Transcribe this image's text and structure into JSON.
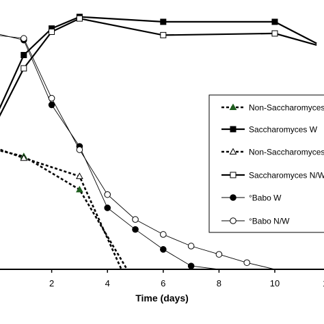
{
  "chart_data": {
    "type": "line",
    "title": "",
    "xlabel": "Time (days)",
    "ylabel": "",
    "xlim": [
      0,
      11.5
    ],
    "x_ticks": [
      2,
      4,
      6,
      8,
      10
    ],
    "x_tick_labels": [
      "2",
      "4",
      "6",
      "8",
      "10"
    ],
    "grid": false,
    "legend_position": "right",
    "series": [
      {
        "name": "Non-Saccharomyces W",
        "line": "dashed",
        "marker": "triangle-filled",
        "color": "#000000",
        "x": [
          0,
          1,
          3,
          4.7
        ],
        "y": [
          0.72,
          0.68,
          0.48,
          0.0
        ]
      },
      {
        "name": "Saccharomyces W",
        "line": "solid",
        "marker": "square-filled",
        "color": "#000000",
        "x": [
          0,
          1,
          2,
          3,
          6,
          10,
          11.5
        ],
        "y": [
          0.92,
          1.29,
          1.45,
          1.52,
          1.49,
          1.49,
          1.36
        ]
      },
      {
        "name": "Non-Saccharomyces N/W",
        "line": "dashed",
        "marker": "triangle-open",
        "color": "#000000",
        "x": [
          0,
          1,
          3,
          4.5
        ],
        "y": [
          0.73,
          0.67,
          0.56,
          0.0
        ]
      },
      {
        "name": "Saccharomyces N/W",
        "line": "solid",
        "marker": "square-open",
        "color": "#000000",
        "x": [
          0,
          1,
          2,
          3,
          6,
          10,
          11.5
        ],
        "y": [
          0.88,
          1.21,
          1.43,
          1.51,
          1.41,
          1.42,
          1.35
        ]
      },
      {
        "name": "°Babo W",
        "line": "thin",
        "marker": "circle-filled",
        "color": "#000000",
        "x": [
          0,
          1,
          2,
          3,
          4,
          5,
          6,
          7,
          8
        ],
        "y": [
          1.42,
          1.38,
          0.99,
          0.74,
          0.37,
          0.24,
          0.12,
          0.02,
          0.0
        ]
      },
      {
        "name": "°Babo N/W",
        "line": "thin",
        "marker": "circle-open",
        "color": "#000000",
        "x": [
          0,
          1,
          2,
          3,
          4,
          5,
          6,
          7,
          8,
          9,
          10
        ],
        "y": [
          1.41,
          1.39,
          1.03,
          0.72,
          0.45,
          0.3,
          0.21,
          0.14,
          0.09,
          0.04,
          0.0
        ]
      }
    ],
    "legend": {
      "entries": [
        "Non-Saccharomyces W",
        "Saccharomyces W",
        "Non-Saccharomyces N/W",
        "Saccharomyces N/W",
        "°Babo W",
        "°Babo N/W"
      ]
    }
  }
}
